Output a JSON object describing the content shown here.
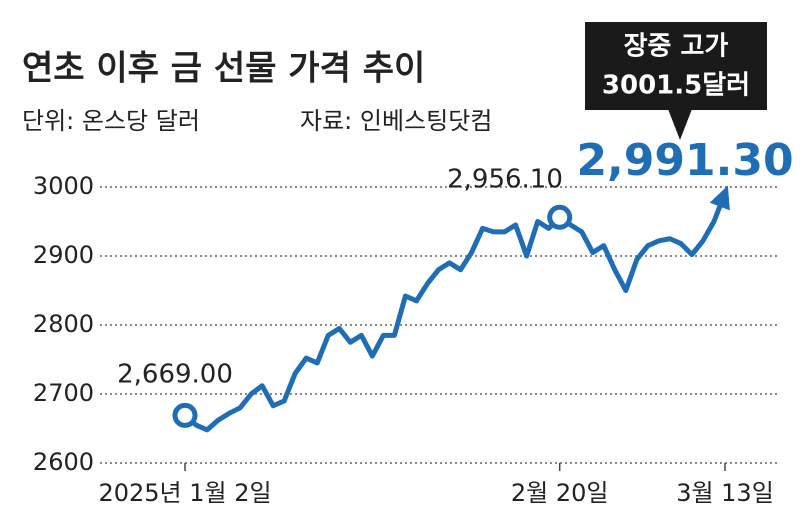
{
  "chart_data": {
    "type": "line",
    "title": "연초 이후 금 선물 가격 추이",
    "subtitle": "단위: 온스당 달러",
    "source": "자료: 인베스팅닷컴",
    "annotation": [
      "장중 고가",
      "3001.5달러"
    ],
    "color": "#1f6db5",
    "categories": [
      "2025년 1월 2일",
      null,
      null,
      null,
      null,
      null,
      null,
      null,
      null,
      null,
      null,
      null,
      null,
      null,
      null,
      null,
      null,
      null,
      null,
      null,
      null,
      null,
      null,
      null,
      null,
      null,
      null,
      null,
      null,
      null,
      null,
      null,
      null,
      null,
      "2월 20일",
      null,
      null,
      null,
      null,
      null,
      null,
      null,
      null,
      null,
      null,
      null,
      null,
      null,
      null,
      "3월 13일"
    ],
    "values": [
      2669,
      2655,
      2648,
      2662,
      2672,
      2680,
      2700,
      2712,
      2683,
      2690,
      2730,
      2752,
      2745,
      2785,
      2795,
      2775,
      2785,
      2755,
      2785,
      2785,
      2842,
      2835,
      2860,
      2880,
      2890,
      2880,
      2905,
      2940,
      2935,
      2935,
      2945,
      2900,
      2950,
      2940,
      2956.1,
      2945,
      2935,
      2905,
      2915,
      2880,
      2850,
      2895,
      2915,
      2922,
      2925,
      2918,
      2902,
      2922,
      2950,
      2991.3
    ],
    "value_labels": [
      "2,669.00",
      null,
      null,
      null,
      null,
      null,
      null,
      null,
      null,
      null,
      null,
      null,
      null,
      null,
      null,
      null,
      null,
      null,
      null,
      null,
      null,
      null,
      null,
      null,
      null,
      null,
      null,
      null,
      null,
      null,
      null,
      null,
      null,
      null,
      "2,956.10",
      null,
      null,
      null,
      null,
      null,
      null,
      null,
      null,
      null,
      null,
      null,
      null,
      null,
      null,
      "2,991.30"
    ],
    "ylim": [
      2600,
      3000
    ],
    "yticks": [
      2600,
      2700,
      2800,
      2900,
      3000
    ],
    "grid": true
  }
}
